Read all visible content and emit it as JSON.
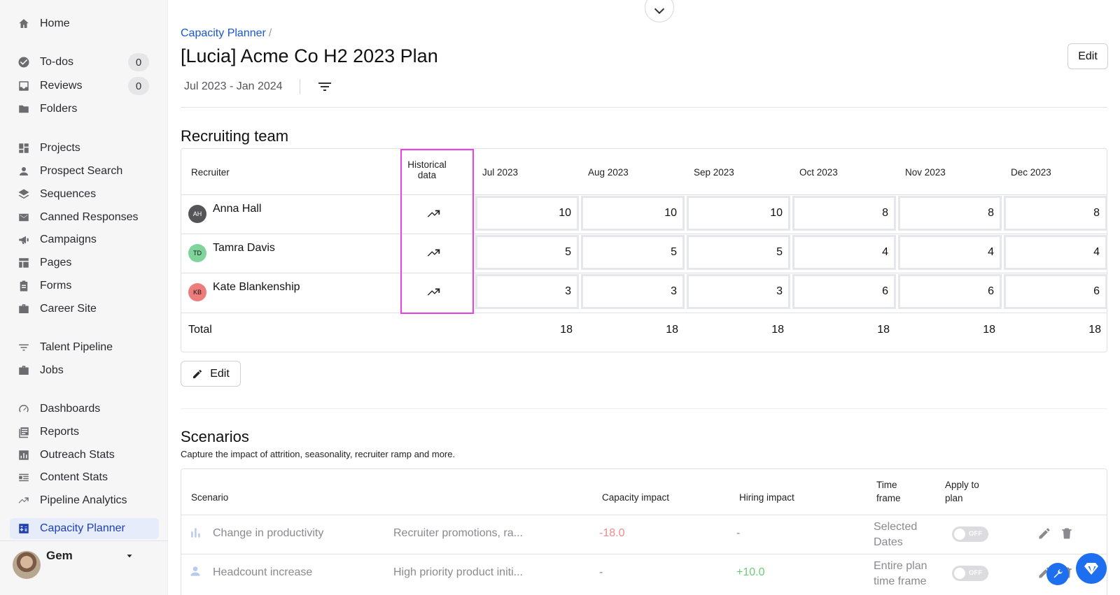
{
  "sidebar": {
    "items": [
      {
        "label": "Home",
        "icon": "home-icon"
      },
      {
        "label": "To-dos",
        "icon": "check-circle-icon",
        "count": "0"
      },
      {
        "label": "Reviews",
        "icon": "inbox-icon",
        "count": "0"
      },
      {
        "label": "Folders",
        "icon": "folder-icon"
      },
      {
        "label": "Projects",
        "icon": "dashboard-grid-icon"
      },
      {
        "label": "Prospect Search",
        "icon": "person-icon"
      },
      {
        "label": "Sequences",
        "icon": "layers-icon"
      },
      {
        "label": "Canned Responses",
        "icon": "mail-icon"
      },
      {
        "label": "Campaigns",
        "icon": "megaphone-icon"
      },
      {
        "label": "Pages",
        "icon": "layout-icon"
      },
      {
        "label": "Forms",
        "icon": "clipboard-icon"
      },
      {
        "label": "Career Site",
        "icon": "briefcase-icon"
      },
      {
        "label": "Talent Pipeline",
        "icon": "filter-lines-icon"
      },
      {
        "label": "Jobs",
        "icon": "briefcase-icon"
      },
      {
        "label": "Dashboards",
        "icon": "speedometer-icon"
      },
      {
        "label": "Reports",
        "icon": "report-icon"
      },
      {
        "label": "Outreach Stats",
        "icon": "bar-chart-icon"
      },
      {
        "label": "Content Stats",
        "icon": "content-list-icon"
      },
      {
        "label": "Pipeline Analytics",
        "icon": "trending-up-icon"
      },
      {
        "label": "Capacity Planner",
        "icon": "calculator-icon",
        "active": true
      }
    ],
    "user": {
      "name": "Gem"
    }
  },
  "header": {
    "breadcrumb": "Capacity Planner",
    "breadcrumb_sep": "/",
    "title": "[Lucia] Acme Co H2 2023 Plan",
    "edit_label": "Edit",
    "date_range": "Jul 2023 - Jan 2024"
  },
  "recruiting": {
    "title": "Recruiting team",
    "col_recruiter": "Recruiter",
    "col_historical_1": "Historical",
    "col_historical_2": "data",
    "months": [
      "Jul 2023",
      "Aug 2023",
      "Sep 2023",
      "Oct 2023",
      "Nov 2023",
      "Dec 2023"
    ],
    "rows": [
      {
        "initials": "AH",
        "name": "Anna Hall",
        "avatar_color": "#555559",
        "values": [
          "10",
          "10",
          "10",
          "8",
          "8",
          "8"
        ]
      },
      {
        "initials": "TD",
        "name": "Tamra Davis",
        "avatar_color": "#7fd49b",
        "values": [
          "5",
          "5",
          "5",
          "4",
          "4",
          "4"
        ]
      },
      {
        "initials": "KB",
        "name": "Kate Blankenship",
        "avatar_color": "#ee7c7c",
        "values": [
          "3",
          "3",
          "3",
          "6",
          "6",
          "6"
        ]
      }
    ],
    "total_label": "Total",
    "totals": [
      "18",
      "18",
      "18",
      "18",
      "18",
      "18"
    ],
    "edit_label": "Edit"
  },
  "scenarios": {
    "title": "Scenarios",
    "subtitle": "Capture the impact of attrition, seasonality, recruiter ramp and more.",
    "columns": {
      "scenario": "Scenario",
      "capacity": "Capacity impact",
      "hiring": "Hiring impact",
      "timeframe_1": "Time",
      "timeframe_2": "frame",
      "apply_1": "Apply to",
      "apply_2": "plan"
    },
    "rows": [
      {
        "name": "Change in productivity",
        "description": "Recruiter promotions, ra...",
        "capacity": "-18.0",
        "hiring": "-",
        "timeframe_1": "Selected",
        "timeframe_2": "Dates",
        "toggle": "OFF"
      },
      {
        "name": "Headcount increase",
        "description": "High priority product initi...",
        "capacity": "-",
        "hiring": "+10.0",
        "timeframe_1": "Entire plan",
        "timeframe_2": "time frame",
        "toggle": "OFF"
      }
    ]
  }
}
